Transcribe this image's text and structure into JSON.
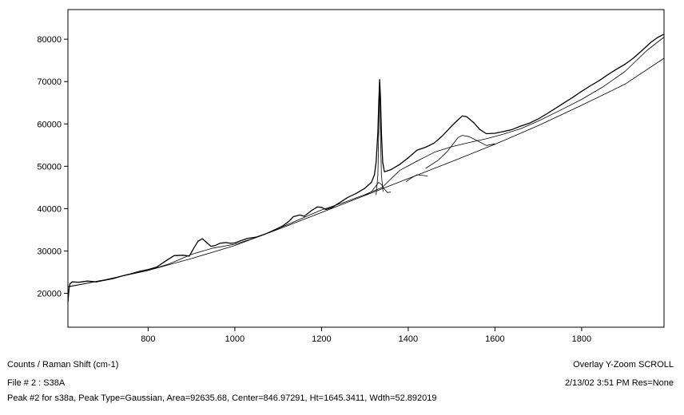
{
  "chart_data": {
    "type": "line",
    "xlim": [
      615,
      1990
    ],
    "ylim": [
      12000,
      87000
    ],
    "x_ticks": [
      800,
      1000,
      1200,
      1400,
      1600,
      1800
    ],
    "y_ticks": [
      20000,
      30000,
      40000,
      50000,
      60000,
      70000,
      80000
    ],
    "series": [
      {
        "role": "spectrum",
        "points": [
          [
            615,
            18000
          ],
          [
            618,
            21500
          ],
          [
            620,
            22300
          ],
          [
            625,
            22700
          ],
          [
            640,
            22600
          ],
          [
            660,
            22900
          ],
          [
            680,
            22700
          ],
          [
            700,
            23100
          ],
          [
            720,
            23500
          ],
          [
            740,
            24100
          ],
          [
            760,
            24600
          ],
          [
            780,
            25200
          ],
          [
            800,
            25600
          ],
          [
            820,
            26200
          ],
          [
            840,
            27600
          ],
          [
            860,
            28900
          ],
          [
            880,
            29000
          ],
          [
            895,
            28800
          ],
          [
            905,
            30600
          ],
          [
            915,
            32300
          ],
          [
            925,
            32900
          ],
          [
            935,
            32000
          ],
          [
            945,
            31100
          ],
          [
            955,
            31300
          ],
          [
            965,
            31800
          ],
          [
            980,
            32000
          ],
          [
            990,
            31800
          ],
          [
            1000,
            31900
          ],
          [
            1010,
            32300
          ],
          [
            1030,
            33000
          ],
          [
            1050,
            33300
          ],
          [
            1070,
            34000
          ],
          [
            1090,
            34900
          ],
          [
            1110,
            35900
          ],
          [
            1125,
            37000
          ],
          [
            1135,
            38100
          ],
          [
            1150,
            38500
          ],
          [
            1160,
            38200
          ],
          [
            1175,
            39400
          ],
          [
            1190,
            40400
          ],
          [
            1200,
            40300
          ],
          [
            1210,
            39800
          ],
          [
            1225,
            40300
          ],
          [
            1240,
            41300
          ],
          [
            1260,
            42600
          ],
          [
            1280,
            43600
          ],
          [
            1300,
            44800
          ],
          [
            1315,
            46200
          ],
          [
            1322,
            48000
          ],
          [
            1326,
            51000
          ],
          [
            1330,
            58000
          ],
          [
            1332,
            65000
          ],
          [
            1334,
            70500
          ],
          [
            1336,
            66000
          ],
          [
            1338,
            58000
          ],
          [
            1341,
            51000
          ],
          [
            1345,
            48700
          ],
          [
            1360,
            49200
          ],
          [
            1380,
            50400
          ],
          [
            1400,
            52000
          ],
          [
            1420,
            53800
          ],
          [
            1440,
            54500
          ],
          [
            1460,
            55500
          ],
          [
            1480,
            57300
          ],
          [
            1500,
            59500
          ],
          [
            1515,
            61000
          ],
          [
            1525,
            61900
          ],
          [
            1535,
            61700
          ],
          [
            1550,
            60400
          ],
          [
            1565,
            58700
          ],
          [
            1580,
            57700
          ],
          [
            1600,
            57800
          ],
          [
            1620,
            58200
          ],
          [
            1640,
            58700
          ],
          [
            1660,
            59500
          ],
          [
            1680,
            60200
          ],
          [
            1700,
            61200
          ],
          [
            1720,
            62400
          ],
          [
            1740,
            63700
          ],
          [
            1760,
            65000
          ],
          [
            1780,
            66300
          ],
          [
            1800,
            67700
          ],
          [
            1820,
            69000
          ],
          [
            1840,
            70200
          ],
          [
            1860,
            71600
          ],
          [
            1880,
            72900
          ],
          [
            1900,
            74100
          ],
          [
            1920,
            75600
          ],
          [
            1940,
            77400
          ],
          [
            1960,
            79300
          ],
          [
            1975,
            80400
          ],
          [
            1990,
            81200
          ]
        ]
      },
      {
        "role": "baseline",
        "points": [
          [
            615,
            21500
          ],
          [
            700,
            23200
          ],
          [
            800,
            25400
          ],
          [
            900,
            28200
          ],
          [
            1000,
            31300
          ],
          [
            1100,
            35100
          ],
          [
            1200,
            39100
          ],
          [
            1300,
            43100
          ],
          [
            1400,
            47100
          ],
          [
            1500,
            51100
          ],
          [
            1600,
            55200
          ],
          [
            1700,
            59600
          ],
          [
            1800,
            64400
          ],
          [
            1900,
            69400
          ],
          [
            1990,
            75500
          ]
        ]
      },
      {
        "role": "fit",
        "points": [
          [
            615,
            21600
          ],
          [
            660,
            22400
          ],
          [
            700,
            23200
          ],
          [
            750,
            24300
          ],
          [
            800,
            25400
          ],
          [
            850,
            27000
          ],
          [
            900,
            29200
          ],
          [
            950,
            30700
          ],
          [
            1000,
            31600
          ],
          [
            1050,
            33200
          ],
          [
            1100,
            35300
          ],
          [
            1150,
            37500
          ],
          [
            1200,
            39700
          ],
          [
            1250,
            41400
          ],
          [
            1300,
            43300
          ],
          [
            1340,
            45000
          ],
          [
            1380,
            49000
          ],
          [
            1420,
            51200
          ],
          [
            1460,
            53300
          ],
          [
            1500,
            54600
          ],
          [
            1540,
            55600
          ],
          [
            1580,
            56500
          ],
          [
            1620,
            57600
          ],
          [
            1660,
            58900
          ],
          [
            1700,
            60700
          ],
          [
            1750,
            63200
          ],
          [
            1800,
            65800
          ],
          [
            1850,
            68800
          ],
          [
            1900,
            72400
          ],
          [
            1950,
            77300
          ],
          [
            1990,
            80500
          ]
        ]
      },
      {
        "role": "peak",
        "points": [
          [
            1300,
            43100
          ],
          [
            1315,
            44000
          ],
          [
            1325,
            45300
          ],
          [
            1332,
            46200
          ],
          [
            1338,
            45700
          ],
          [
            1345,
            44600
          ],
          [
            1352,
            43800
          ],
          [
            1360,
            43900
          ]
        ]
      },
      {
        "role": "peak",
        "points": [
          [
            1326,
            43200
          ],
          [
            1330,
            48000
          ],
          [
            1332,
            58000
          ],
          [
            1334,
            70300
          ],
          [
            1336,
            58000
          ],
          [
            1338,
            48000
          ],
          [
            1342,
            44000
          ]
        ]
      },
      {
        "role": "peak",
        "points": [
          [
            1395,
            46400
          ],
          [
            1410,
            47400
          ],
          [
            1420,
            48000
          ],
          [
            1430,
            47900
          ],
          [
            1445,
            47700
          ]
        ]
      },
      {
        "role": "peak",
        "points": [
          [
            1440,
            49500
          ],
          [
            1470,
            51500
          ],
          [
            1490,
            53500
          ],
          [
            1505,
            55500
          ],
          [
            1515,
            56800
          ],
          [
            1525,
            57300
          ],
          [
            1540,
            57000
          ],
          [
            1560,
            56000
          ],
          [
            1580,
            54900
          ],
          [
            1600,
            55300
          ]
        ]
      }
    ]
  },
  "footer": {
    "left1": "Counts / Raman Shift (cm-1)",
    "left2": "File # 2 : S38A",
    "left3": "Peak #2 for s38a, Peak Type=Gaussian, Area=92635.68, Center=846.97291, Ht=1645.3411, Wdth=52.892019",
    "right1": "Overlay Y-Zoom SCROLL",
    "right2": "2/13/02  3:51 PM  Res=None"
  }
}
